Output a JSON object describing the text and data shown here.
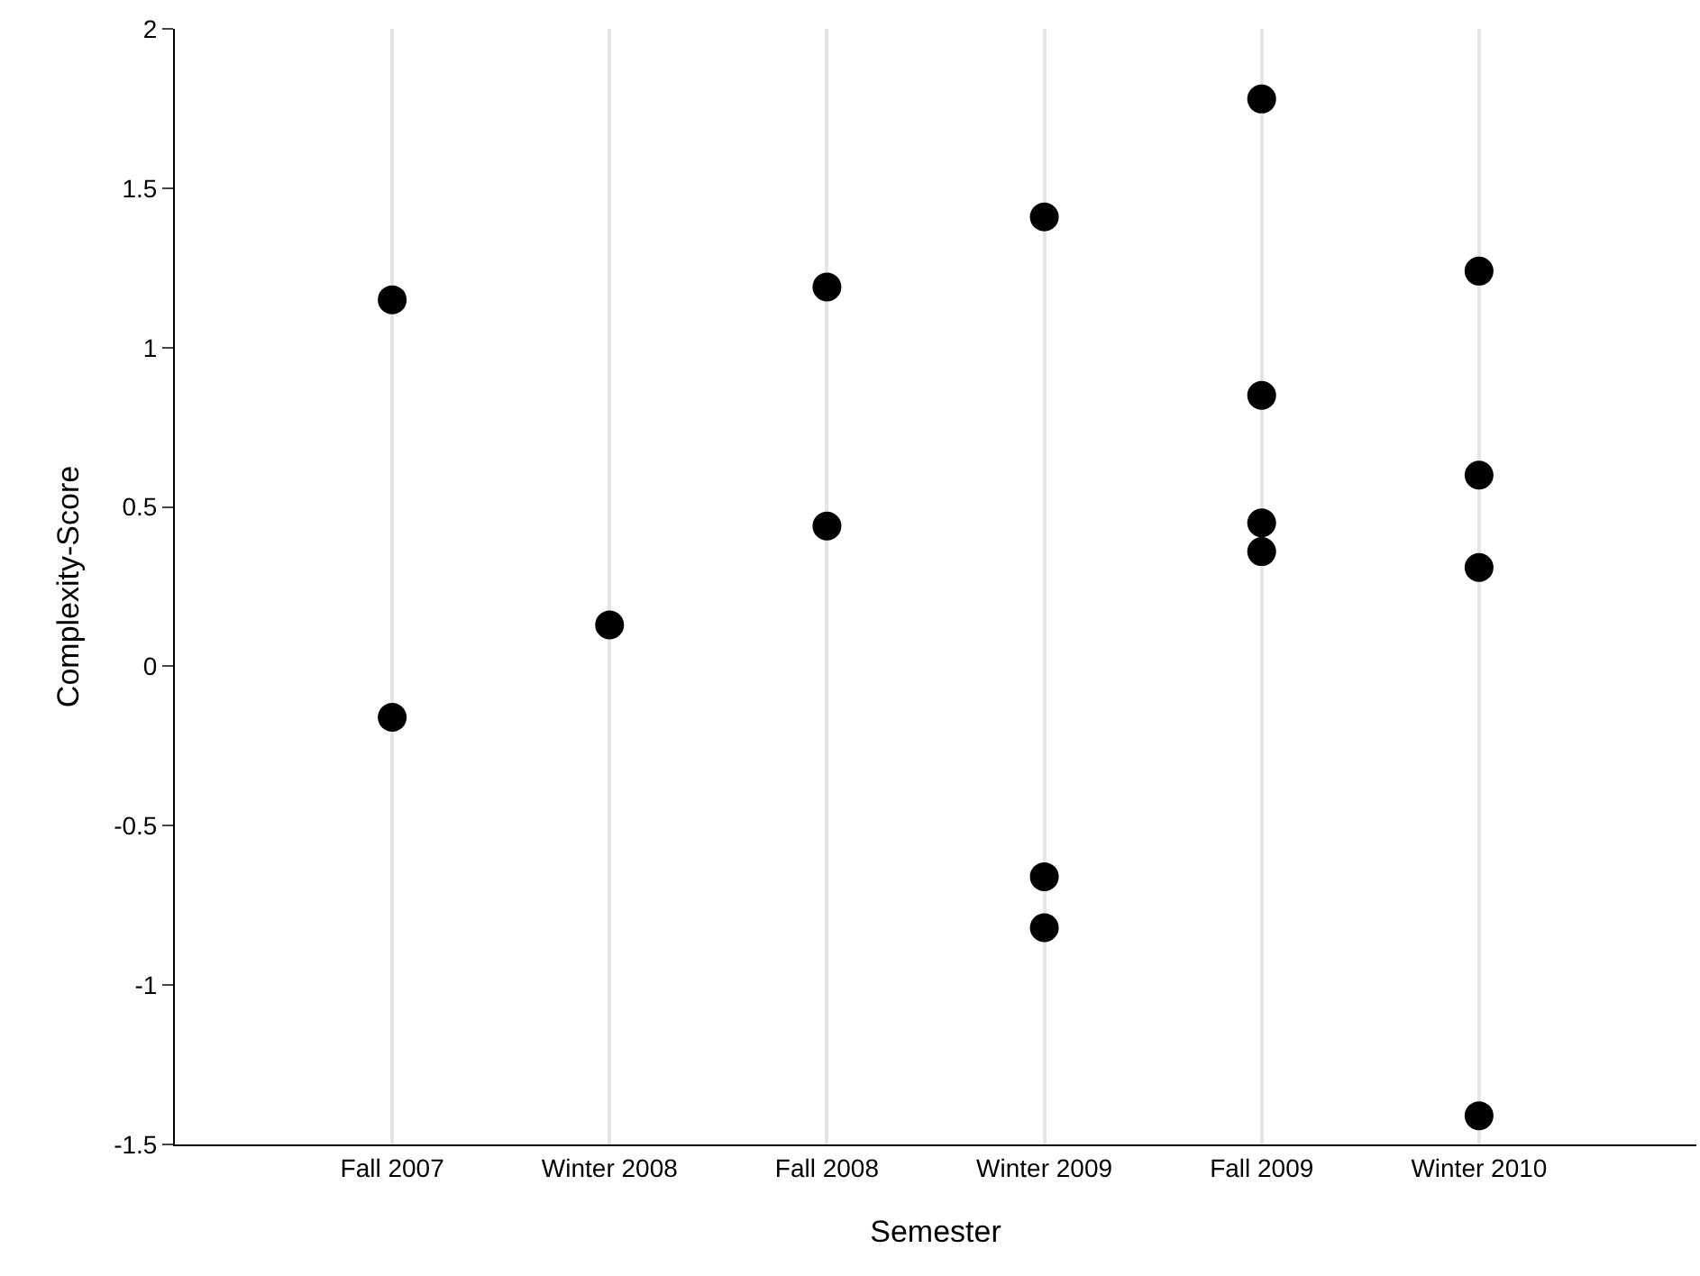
{
  "chart_data": {
    "type": "scatter",
    "xlabel": "Semester",
    "ylabel": "Complexity-Score",
    "categories": [
      "Fall 2007",
      "Winter 2008",
      "Fall 2008",
      "Winter 2009",
      "Fall 2009",
      "Winter 2010"
    ],
    "series": [
      {
        "color": "#000000",
        "x": [
          "Fall 2007",
          "Fall 2007",
          "Winter 2008",
          "Fall 2008",
          "Fall 2008",
          "Winter 2009",
          "Winter 2009",
          "Winter 2009",
          "Fall 2009",
          "Fall 2009",
          "Fall 2009",
          "Fall 2009",
          "Winter 2010",
          "Winter 2010",
          "Winter 2010",
          "Winter 2010"
        ],
        "values": [
          1.15,
          -0.16,
          0.13,
          1.19,
          0.44,
          1.41,
          -0.66,
          -0.82,
          1.78,
          0.85,
          0.45,
          0.36,
          1.24,
          0.6,
          0.31,
          -1.41
        ]
      }
    ],
    "ylim": [
      -1.5,
      2
    ],
    "yticks": [
      -1.5,
      -1,
      -0.5,
      0,
      0.5,
      1,
      1.5,
      2
    ],
    "grid": "x",
    "marker": "circle"
  }
}
